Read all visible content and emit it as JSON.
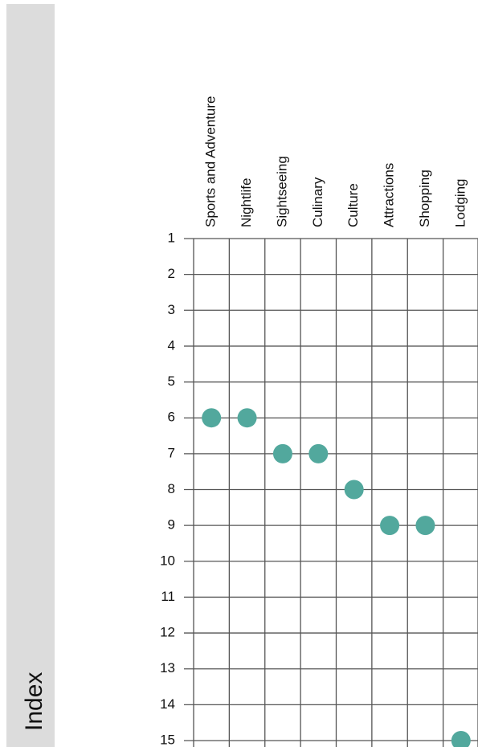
{
  "chart_data": {
    "type": "dot",
    "y_axis_label": "Index",
    "categories": [
      "Sports and Adventure",
      "Nightlife",
      "Sightseeing",
      "Culinary",
      "Culture",
      "Attractions",
      "Shopping",
      "Lodging"
    ],
    "values": [
      6,
      6,
      7,
      7,
      8,
      9,
      9,
      15
    ],
    "color": "#52a89d",
    "ylim": [
      1,
      15
    ],
    "y_reversed": true,
    "yticks": [
      1,
      2,
      3,
      4,
      5,
      6,
      7,
      8,
      9,
      10,
      11,
      12,
      13,
      14,
      15
    ],
    "grid": true
  }
}
